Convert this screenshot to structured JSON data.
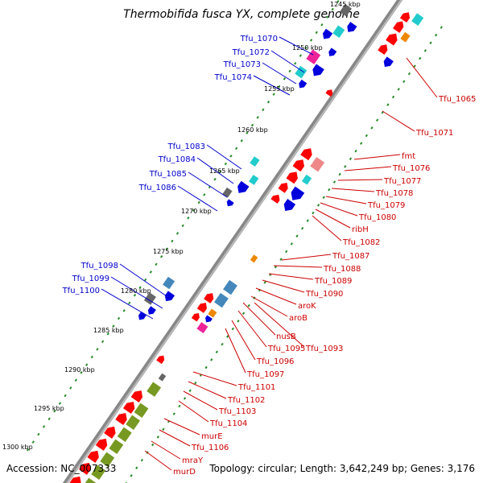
{
  "title": "Thermobifida fusca YX, complete genome",
  "accession": "Accession: NC_007333",
  "topology": "Topology: circular; Length: 3,642,249 bp; Genes: 3,176",
  "kbp_ticks": [
    "1245 kbp",
    "1250 kbp",
    "1255 kbp",
    "1260 kbp",
    "1265 kbp",
    "1270 kbp",
    "1275 kbp",
    "1280 kbp",
    "1285 kbp",
    "1290 kbp",
    "1295 kbp",
    "1300 kbp"
  ],
  "left_labels": [
    "Tfu_1070",
    "Tfu_1072",
    "Tfu_1073",
    "Tfu_1074",
    "Tfu_1083",
    "Tfu_1084",
    "Tfu_1085",
    "Tfu_1086",
    "Tfu_1098",
    "Tfu_1099",
    "Tfu_1100"
  ],
  "right_labels": [
    "Tfu_1065",
    "Tfu_1071",
    "fmt",
    "Tfu_1076",
    "Tfu_1077",
    "Tfu_1078",
    "Tfu_1079",
    "Tfu_1080",
    "ribH",
    "Tfu_1082",
    "Tfu_1087",
    "Tfu_1088",
    "Tfu_1089",
    "Tfu_1090",
    "aroK",
    "aroB",
    "nusB",
    "Tfu_1095",
    "Tfu_1093",
    "Tfu_1096",
    "Tfu_1097",
    "Tfu_1101",
    "Tfu_1102",
    "Tfu_1103",
    "Tfu_1104",
    "murE",
    "Tfu_1106",
    "mraY",
    "murD"
  ],
  "colors": {
    "forward_cds": "#0000dd",
    "reverse_cds": "#ff0000",
    "left_label": "#0000cc",
    "right_label": "#cc0000",
    "backbone": "#888888",
    "tick_dots": "#228b22",
    "teal": "#22cccc",
    "magenta": "#ee2299",
    "olive": "#779922",
    "steel_blue": "#4488bb",
    "grey": "#666666",
    "orange": "#ee8800",
    "pink": "#ee8888"
  }
}
